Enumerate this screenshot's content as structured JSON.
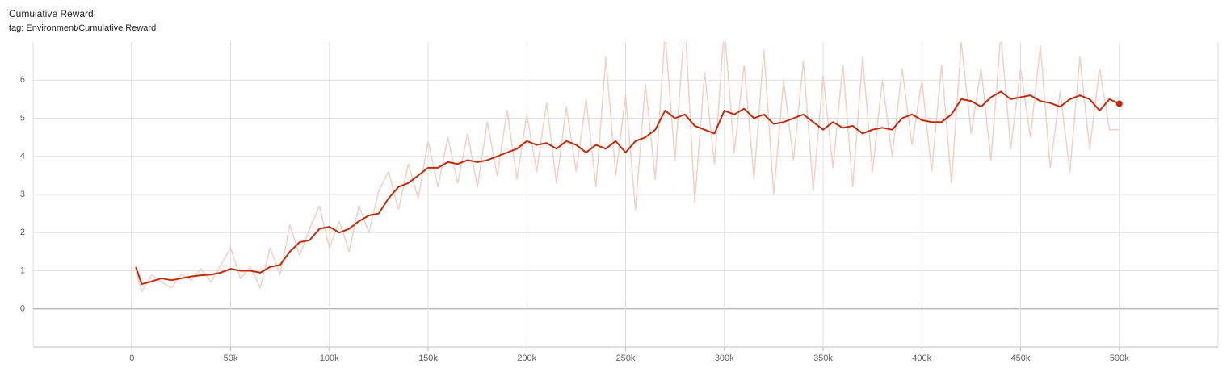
{
  "chart_data": {
    "type": "line",
    "title": "Cumulative Reward",
    "subtitle": "tag: Environment/Cumulative Reward",
    "x": [
      2000,
      5000,
      10000,
      15000,
      20000,
      25000,
      30000,
      35000,
      40000,
      45000,
      50000,
      55000,
      60000,
      65000,
      70000,
      75000,
      80000,
      85000,
      90000,
      95000,
      100000,
      105000,
      110000,
      115000,
      120000,
      125000,
      130000,
      135000,
      140000,
      145000,
      150000,
      155000,
      160000,
      165000,
      170000,
      175000,
      180000,
      185000,
      190000,
      195000,
      200000,
      205000,
      210000,
      215000,
      220000,
      225000,
      230000,
      235000,
      240000,
      245000,
      250000,
      255000,
      260000,
      265000,
      270000,
      275000,
      280000,
      285000,
      290000,
      295000,
      300000,
      305000,
      310000,
      315000,
      320000,
      325000,
      330000,
      335000,
      340000,
      345000,
      350000,
      355000,
      360000,
      365000,
      370000,
      375000,
      380000,
      385000,
      390000,
      395000,
      400000,
      405000,
      410000,
      415000,
      420000,
      425000,
      430000,
      435000,
      440000,
      445000,
      450000,
      455000,
      460000,
      465000,
      470000,
      475000,
      480000,
      485000,
      490000,
      495000,
      500000
    ],
    "series": [
      {
        "color": "#f4cfc3",
        "values": [
          1.0,
          0.45,
          0.9,
          0.7,
          0.55,
          0.9,
          0.75,
          1.05,
          0.7,
          1.15,
          1.6,
          0.8,
          1.1,
          0.55,
          1.6,
          0.9,
          2.2,
          1.4,
          2.1,
          2.7,
          1.6,
          2.3,
          1.5,
          2.7,
          2.0,
          3.1,
          3.6,
          2.6,
          3.8,
          2.9,
          4.4,
          3.2,
          4.5,
          3.3,
          4.6,
          3.2,
          4.9,
          3.5,
          5.2,
          3.4,
          5.1,
          3.6,
          5.4,
          3.3,
          5.3,
          3.6,
          5.5,
          3.2,
          6.6,
          3.5,
          5.6,
          2.6,
          5.9,
          3.4,
          7.2,
          3.9,
          7.6,
          2.8,
          6.2,
          3.8,
          7.4,
          4.1,
          6.4,
          3.4,
          6.8,
          3.0,
          6.0,
          3.9,
          6.5,
          3.1,
          6.1,
          3.7,
          6.4,
          3.2,
          6.6,
          3.6,
          6.0,
          4.0,
          6.3,
          4.3,
          6.0,
          3.6,
          6.4,
          3.3,
          7.0,
          4.6,
          6.3,
          3.9,
          7.2,
          4.2,
          6.3,
          4.5,
          6.9,
          3.7,
          5.7,
          3.6,
          6.6,
          4.2,
          6.3,
          4.7,
          4.7
        ]
      },
      {
        "color": "#c5290c",
        "values": [
          1.1,
          0.65,
          0.72,
          0.8,
          0.75,
          0.8,
          0.85,
          0.88,
          0.9,
          0.95,
          1.05,
          1.0,
          1.0,
          0.95,
          1.1,
          1.15,
          1.5,
          1.75,
          1.8,
          2.1,
          2.15,
          2.0,
          2.1,
          2.3,
          2.45,
          2.5,
          2.9,
          3.2,
          3.3,
          3.5,
          3.7,
          3.7,
          3.85,
          3.8,
          3.9,
          3.85,
          3.9,
          4.0,
          4.1,
          4.2,
          4.4,
          4.3,
          4.35,
          4.2,
          4.4,
          4.3,
          4.1,
          4.3,
          4.2,
          4.4,
          4.1,
          4.4,
          4.5,
          4.7,
          5.2,
          5.0,
          5.1,
          4.8,
          4.7,
          4.6,
          5.2,
          5.1,
          5.25,
          5.0,
          5.1,
          4.85,
          4.9,
          5.0,
          5.1,
          4.9,
          4.7,
          4.9,
          4.75,
          4.8,
          4.6,
          4.7,
          4.75,
          4.7,
          5.0,
          5.1,
          4.95,
          4.9,
          4.9,
          5.1,
          5.5,
          5.45,
          5.3,
          5.55,
          5.7,
          5.5,
          5.55,
          5.6,
          5.45,
          5.4,
          5.3,
          5.5,
          5.6,
          5.5,
          5.2,
          5.5,
          5.38
        ]
      }
    ],
    "xlim": [
      -50000,
      550000
    ],
    "ylim": [
      -1,
      7
    ],
    "xticks": [
      0,
      {
        "value": 50000,
        "label": "50k"
      },
      {
        "value": 100000,
        "label": "100k"
      },
      {
        "value": 150000,
        "label": "150k"
      },
      {
        "value": 200000,
        "label": "200k"
      },
      {
        "value": 250000,
        "label": "250k"
      },
      {
        "value": 300000,
        "label": "300k"
      },
      {
        "value": 350000,
        "label": "350k"
      },
      {
        "value": 400000,
        "label": "400k"
      },
      {
        "value": 450000,
        "label": "450k"
      },
      {
        "value": 500000,
        "label": "500k"
      }
    ],
    "yticks": [
      0,
      1,
      2,
      3,
      4,
      5,
      6
    ],
    "grid": true
  }
}
